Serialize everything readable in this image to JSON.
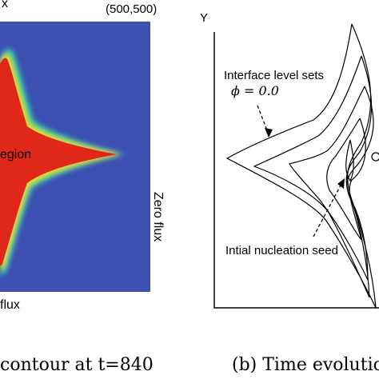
{
  "panel_a": {
    "corner_label": "x",
    "coordinate_label": "(500,500)",
    "region_label": "egion",
    "right_boundary_label": "Zero flux",
    "bottom_boundary_label": "flux",
    "caption": "contour at t=840",
    "colors": {
      "background": "#3d4fb0",
      "solid": "#e0281a"
    }
  },
  "panel_b": {
    "axis_label": "Y",
    "interface_label_line1": "Interface level sets",
    "interface_label_line2": "ϕ = 0.0",
    "seed_label": "Intial nucleation seed",
    "caption": "(b) Time evolution"
  }
}
